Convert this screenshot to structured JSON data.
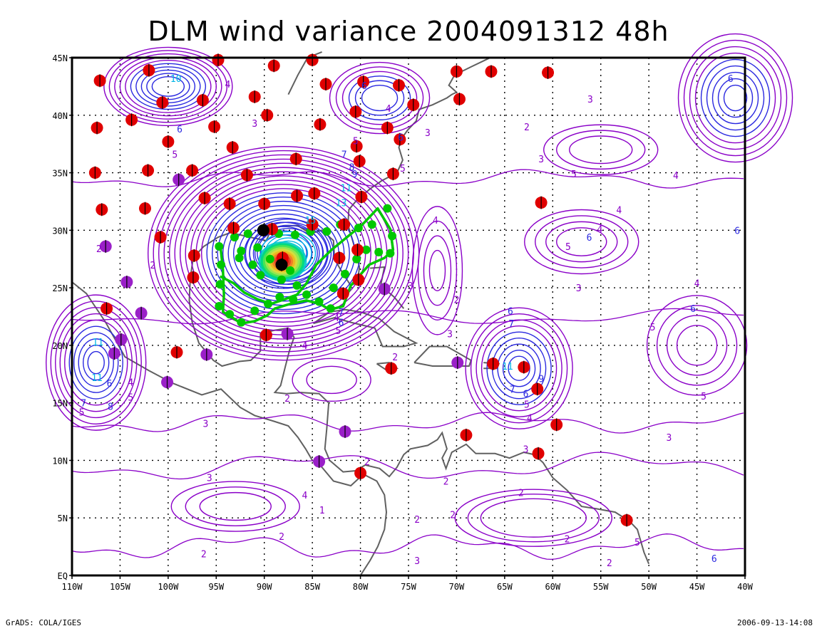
{
  "title": "DLM wind variance 2004091312 48h",
  "footer": {
    "left": "GrADS: COLA/IGES",
    "right": "2006-09-13-14:08"
  },
  "axes": {
    "lon_labels": [
      "110W",
      "105W",
      "100W",
      "95W",
      "90W",
      "85W",
      "80W",
      "75W",
      "70W",
      "65W",
      "60W",
      "55W",
      "50W",
      "45W",
      "40W"
    ],
    "lat_labels": [
      "45N",
      "40N",
      "35N",
      "30N",
      "25N",
      "20N",
      "15N",
      "10N",
      "5N",
      "EQ"
    ],
    "lon_range": [
      -110,
      -40
    ],
    "lat_range": [
      0,
      45
    ],
    "grid": true
  },
  "colors": {
    "contour_low": "#8a00c8",
    "contour_mid": "#2a28e0",
    "contour_high": "#00b4e6",
    "coast": "#606060",
    "track": "#00c800",
    "obs_red": "#e00000",
    "obs_purple": "#9a20c8"
  },
  "contour_labels": [
    {
      "t": "2",
      "lon": -107.2,
      "lat": 28.4
    },
    {
      "t": "5",
      "lon": -99.3,
      "lat": 36.6
    },
    {
      "t": "10",
      "lon": -99.2,
      "lat": 43.2
    },
    {
      "t": "6",
      "lon": -98.8,
      "lat": 38.8
    },
    {
      "t": "4",
      "lon": -93.8,
      "lat": 42.7
    },
    {
      "t": "3",
      "lon": -91.0,
      "lat": 39.3
    },
    {
      "t": "5",
      "lon": -80.5,
      "lat": 37.8
    },
    {
      "t": "7",
      "lon": -81.7,
      "lat": 36.6
    },
    {
      "t": "8",
      "lon": -80.9,
      "lat": 35.5
    },
    {
      "t": "9",
      "lon": -80.6,
      "lat": 34.9
    },
    {
      "t": "11",
      "lon": -81.5,
      "lat": 33.7
    },
    {
      "t": "13",
      "lon": -82.0,
      "lat": 32.4
    },
    {
      "t": "15",
      "lon": -85.2,
      "lat": 30.9
    },
    {
      "t": "6",
      "lon": -79.6,
      "lat": 42.6
    },
    {
      "t": "4",
      "lon": -77.1,
      "lat": 40.6
    },
    {
      "t": "6",
      "lon": -75.8,
      "lat": 38.1
    },
    {
      "t": "5",
      "lon": -75.6,
      "lat": 35.4
    },
    {
      "t": "3",
      "lon": -73.0,
      "lat": 38.5
    },
    {
      "t": "4",
      "lon": -72.2,
      "lat": 30.9
    },
    {
      "t": "3",
      "lon": -74.8,
      "lat": 25.2
    },
    {
      "t": "2",
      "lon": -70.0,
      "lat": 24.0
    },
    {
      "t": "3",
      "lon": -70.7,
      "lat": 21.0
    },
    {
      "t": "2",
      "lon": -76.4,
      "lat": 19.0
    },
    {
      "t": "4",
      "lon": -82.5,
      "lat": 22.4
    },
    {
      "t": "5",
      "lon": -82.3,
      "lat": 21.3
    },
    {
      "t": "6",
      "lon": -82.0,
      "lat": 22.0
    },
    {
      "t": "7",
      "lon": -82.0,
      "lat": 22.9
    },
    {
      "t": "4",
      "lon": -85.8,
      "lat": 20.0
    },
    {
      "t": "5",
      "lon": -103.9,
      "lat": 15.5
    },
    {
      "t": "6",
      "lon": -106.1,
      "lat": 16.7
    },
    {
      "t": "4",
      "lon": -103.9,
      "lat": 16.8
    },
    {
      "t": "11",
      "lon": -107.3,
      "lat": 20.3
    },
    {
      "t": "11",
      "lon": -107.4,
      "lat": 17.2
    },
    {
      "t": "8",
      "lon": -106.0,
      "lat": 14.7
    },
    {
      "t": "7",
      "lon": -108.8,
      "lat": 15.0
    },
    {
      "t": "3",
      "lon": -96.1,
      "lat": 13.2
    },
    {
      "t": "3",
      "lon": -95.7,
      "lat": 8.5
    },
    {
      "t": "2",
      "lon": -87.6,
      "lat": 15.4
    },
    {
      "t": "2",
      "lon": -96.3,
      "lat": 1.9
    },
    {
      "t": "2",
      "lon": -88.2,
      "lat": 3.4
    },
    {
      "t": "2",
      "lon": -79.3,
      "lat": 9.9
    },
    {
      "t": "2",
      "lon": -71.1,
      "lat": 8.2
    },
    {
      "t": "2",
      "lon": -70.4,
      "lat": 5.3
    },
    {
      "t": "2",
      "lon": -74.1,
      "lat": 4.9
    },
    {
      "t": "2",
      "lon": -63.3,
      "lat": 7.2
    },
    {
      "t": "2",
      "lon": -58.5,
      "lat": 3.2
    },
    {
      "t": "3",
      "lon": -62.8,
      "lat": 11.0
    },
    {
      "t": "3",
      "lon": -47.9,
      "lat": 12.0
    },
    {
      "t": "4",
      "lon": -62.4,
      "lat": 13.7
    },
    {
      "t": "5",
      "lon": -62.7,
      "lat": 14.9
    },
    {
      "t": "6",
      "lon": -62.8,
      "lat": 15.8
    },
    {
      "t": "7",
      "lon": -64.2,
      "lat": 16.2
    },
    {
      "t": "11",
      "lon": -64.7,
      "lat": 18.2
    },
    {
      "t": "9",
      "lon": -61.2,
      "lat": 17.1
    },
    {
      "t": "7",
      "lon": -64.3,
      "lat": 21.9
    },
    {
      "t": "6",
      "lon": -64.4,
      "lat": 23.0
    },
    {
      "t": "3",
      "lon": -57.3,
      "lat": 25.0
    },
    {
      "t": "5",
      "lon": -58.4,
      "lat": 28.6
    },
    {
      "t": "6",
      "lon": -56.2,
      "lat": 29.4
    },
    {
      "t": "4",
      "lon": -55.1,
      "lat": 30.1
    },
    {
      "t": "5",
      "lon": -57.8,
      "lat": 34.9
    },
    {
      "t": "3",
      "lon": -61.2,
      "lat": 36.2
    },
    {
      "t": "3",
      "lon": -56.1,
      "lat": 41.4
    },
    {
      "t": "2",
      "lon": -62.7,
      "lat": 39.0
    },
    {
      "t": "4",
      "lon": -53.1,
      "lat": 31.8
    },
    {
      "t": "4",
      "lon": -47.2,
      "lat": 34.8
    },
    {
      "t": "5",
      "lon": -49.6,
      "lat": 21.6
    },
    {
      "t": "6",
      "lon": -45.4,
      "lat": 23.2
    },
    {
      "t": "4",
      "lon": -45.0,
      "lat": 25.4
    },
    {
      "t": "5",
      "lon": -44.3,
      "lat": 15.6
    },
    {
      "t": "6",
      "lon": -40.8,
      "lat": 30.0
    },
    {
      "t": "6",
      "lon": -41.5,
      "lat": 43.2
    },
    {
      "t": "5",
      "lon": -51.2,
      "lat": 2.9
    },
    {
      "t": "6",
      "lon": -43.2,
      "lat": 1.5
    },
    {
      "t": "2",
      "lon": -54.1,
      "lat": 1.1
    },
    {
      "t": "3",
      "lon": -74.1,
      "lat": 1.3
    },
    {
      "t": "4",
      "lon": -85.8,
      "lat": 7.0
    },
    {
      "t": "1",
      "lon": -84.0,
      "lat": 5.7
    },
    {
      "t": "5",
      "lon": -109.0,
      "lat": 14.2
    },
    {
      "t": "2",
      "lon": -101.6,
      "lat": 27.0
    }
  ],
  "track": {
    "lon": [
      -94.6,
      -94.3,
      -94.2,
      -94.3,
      -93.3,
      -92.4,
      -91.0,
      -89.7,
      -88.9,
      -87.3,
      -85.6,
      -84.2,
      -83.2,
      -81.8,
      -81.0,
      -79.1,
      -77.5,
      -76.6,
      -76.9,
      -78.2,
      -79.8,
      -81.4,
      -83.0,
      -84.6,
      -85.6,
      -86.6,
      -87.9,
      -89.3,
      -90.7,
      -92.1,
      -93.2,
      -94.6
    ],
    "lat": [
      28.9,
      26.6,
      24.4,
      22.9,
      22.4,
      21.9,
      22.1,
      22.6,
      23.2,
      23.6,
      23.9,
      23.6,
      23.1,
      23.4,
      25.2,
      27.0,
      27.6,
      28.3,
      30.1,
      31.9,
      30.5,
      29.4,
      28.3,
      27.0,
      25.4,
      24.4,
      24.0,
      23.6,
      24.0,
      24.6,
      25.4,
      26.0
    ]
  },
  "track_nodes": [
    [
      -94.7,
      28.6
    ],
    [
      -94.5,
      27.0
    ],
    [
      -94.6,
      25.3
    ],
    [
      -94.7,
      23.4
    ],
    [
      -93.6,
      22.7
    ],
    [
      -92.4,
      22.0
    ],
    [
      -91.0,
      23.0
    ],
    [
      -89.6,
      23.6
    ],
    [
      -88.4,
      24.2
    ],
    [
      -87.0,
      24.0
    ],
    [
      -85.6,
      24.4
    ],
    [
      -84.3,
      23.8
    ],
    [
      -83.1,
      23.2
    ],
    [
      -82.8,
      25.0
    ],
    [
      -81.6,
      26.2
    ],
    [
      -80.4,
      27.5
    ],
    [
      -79.4,
      28.3
    ],
    [
      -78.1,
      28.1
    ],
    [
      -76.9,
      28.0
    ],
    [
      -76.7,
      29.5
    ],
    [
      -77.2,
      31.9
    ],
    [
      -78.8,
      30.5
    ],
    [
      -80.2,
      30.2
    ],
    [
      -82.1,
      30.5
    ],
    [
      -83.5,
      29.9
    ],
    [
      -85.2,
      29.9
    ],
    [
      -86.8,
      29.6
    ],
    [
      -88.5,
      29.7
    ],
    [
      -90.2,
      29.9
    ],
    [
      -91.7,
      29.7
    ],
    [
      -93.1,
      29.4
    ],
    [
      -92.6,
      27.6
    ],
    [
      -91.2,
      27.0
    ],
    [
      -90.4,
      26.1
    ],
    [
      -88.2,
      25.7
    ],
    [
      -86.6,
      25.2
    ],
    [
      -87.3,
      26.5
    ],
    [
      -89.4,
      27.5
    ],
    [
      -90.7,
      28.5
    ],
    [
      -92.4,
      28.2
    ]
  ],
  "obs_red": [
    [
      -107.1,
      43.0
    ],
    [
      -102.0,
      43.9
    ],
    [
      -94.8,
      44.8
    ],
    [
      -89.0,
      44.3
    ],
    [
      -85.0,
      44.8
    ],
    [
      -83.6,
      42.7
    ],
    [
      -79.7,
      42.9
    ],
    [
      -76.0,
      42.6
    ],
    [
      -70.0,
      43.8
    ],
    [
      -66.4,
      43.8
    ],
    [
      -60.5,
      43.7
    ],
    [
      -100.6,
      41.1
    ],
    [
      -96.4,
      41.3
    ],
    [
      -91.0,
      41.6
    ],
    [
      -69.7,
      41.4
    ],
    [
      -74.5,
      40.9
    ],
    [
      -89.7,
      40.0
    ],
    [
      -80.5,
      40.3
    ],
    [
      -103.8,
      39.6
    ],
    [
      -107.4,
      38.9
    ],
    [
      -95.2,
      39.0
    ],
    [
      -84.2,
      39.2
    ],
    [
      -77.2,
      38.9
    ],
    [
      -75.9,
      37.9
    ],
    [
      -100.0,
      37.7
    ],
    [
      -93.3,
      37.2
    ],
    [
      -80.4,
      37.3
    ],
    [
      -86.7,
      36.2
    ],
    [
      -80.1,
      36.0
    ],
    [
      -76.6,
      34.9
    ],
    [
      -102.1,
      35.2
    ],
    [
      -107.6,
      35.0
    ],
    [
      -97.5,
      35.2
    ],
    [
      -91.8,
      34.8
    ],
    [
      -96.2,
      32.8
    ],
    [
      -86.6,
      33.0
    ],
    [
      -84.8,
      33.2
    ],
    [
      -79.9,
      32.9
    ],
    [
      -61.2,
      32.4
    ],
    [
      -93.6,
      32.3
    ],
    [
      -90.0,
      32.3
    ],
    [
      -102.4,
      31.9
    ],
    [
      -106.9,
      31.8
    ],
    [
      -81.7,
      30.5
    ],
    [
      -85.0,
      30.5
    ],
    [
      -100.8,
      29.4
    ],
    [
      -93.2,
      30.2
    ],
    [
      -89.2,
      30.1
    ],
    [
      -97.3,
      27.8
    ],
    [
      -88.1,
      27.6
    ],
    [
      -82.2,
      27.6
    ],
    [
      -80.3,
      28.3
    ],
    [
      -97.4,
      25.9
    ],
    [
      -80.2,
      25.7
    ],
    [
      -81.8,
      24.5
    ],
    [
      -106.4,
      23.2
    ],
    [
      -89.8,
      20.9
    ],
    [
      -99.1,
      19.4
    ],
    [
      -76.8,
      18.0
    ],
    [
      -66.2,
      18.4
    ],
    [
      -63.0,
      18.1
    ],
    [
      -61.6,
      16.2
    ],
    [
      -59.6,
      13.1
    ],
    [
      -69.0,
      12.2
    ],
    [
      -61.5,
      10.6
    ],
    [
      -80.0,
      8.9
    ],
    [
      -52.3,
      4.8
    ]
  ],
  "obs_purple": [
    [
      -106.5,
      28.6
    ],
    [
      -98.9,
      34.4
    ],
    [
      -104.3,
      25.5
    ],
    [
      -102.8,
      22.8
    ],
    [
      -104.9,
      20.5
    ],
    [
      -105.6,
      19.3
    ],
    [
      -96.0,
      19.2
    ],
    [
      -100.1,
      16.8
    ],
    [
      -87.6,
      21.0
    ],
    [
      -77.5,
      24.9
    ],
    [
      -69.9,
      18.5
    ],
    [
      -81.6,
      12.5
    ],
    [
      -84.3,
      9.9
    ]
  ],
  "black_dots": [
    [
      -90.1,
      30.0
    ],
    [
      -88.2,
      27.0
    ]
  ]
}
